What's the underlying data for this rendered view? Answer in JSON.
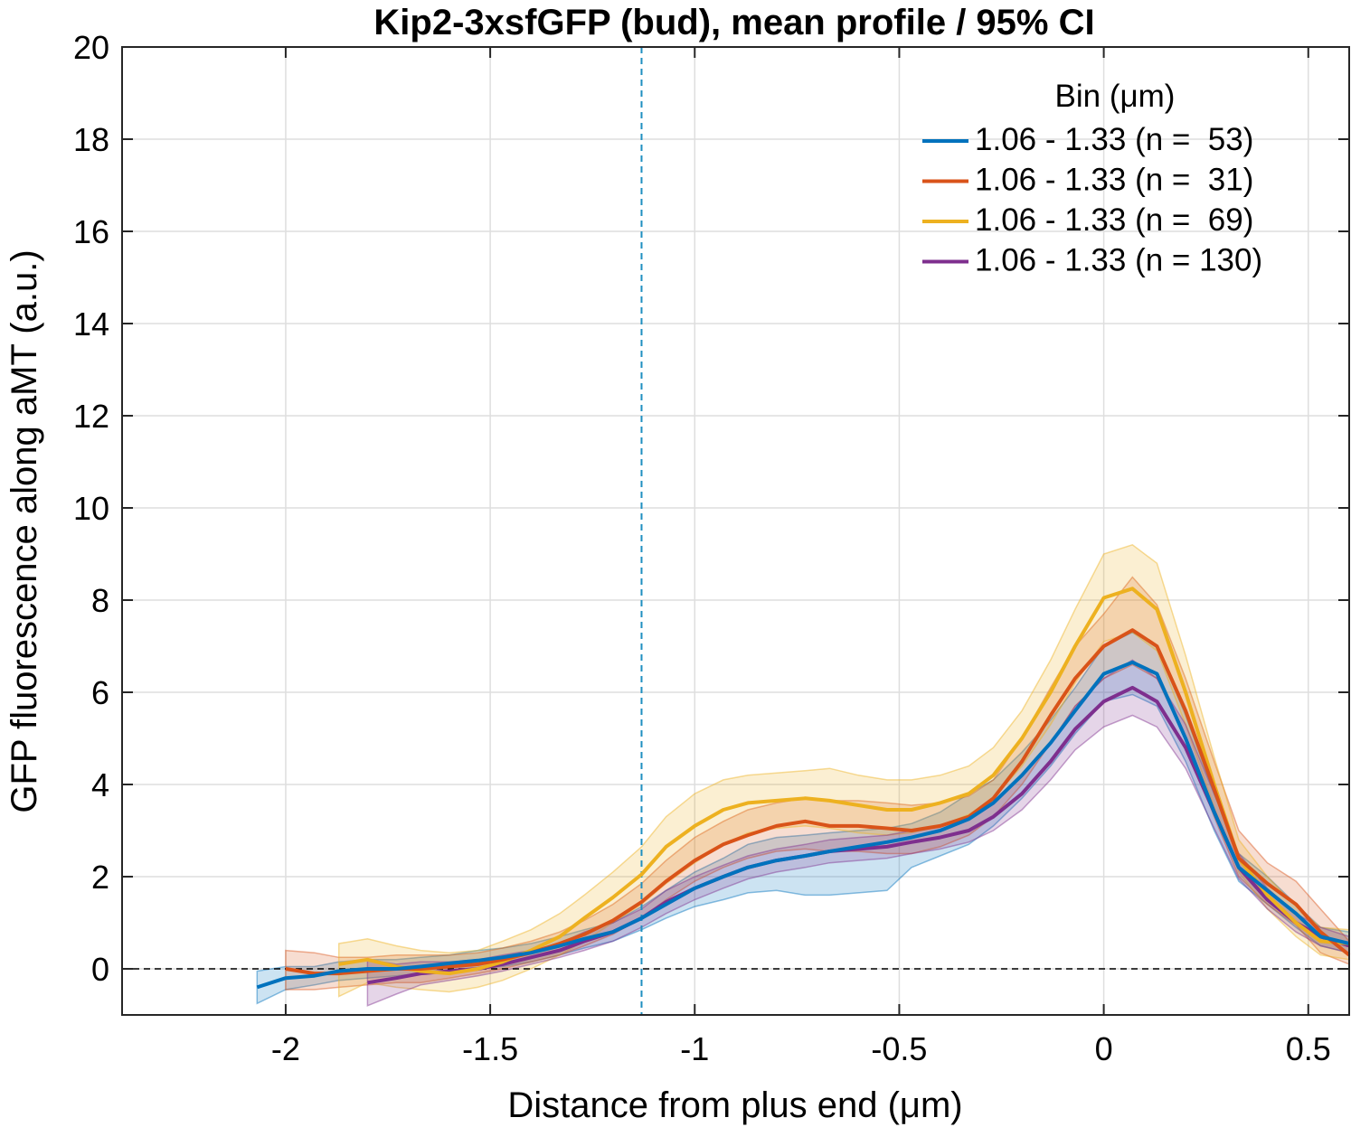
{
  "chart_data": {
    "type": "line",
    "title": "Kip2-3xsfGFP (bud), mean profile / 95% CI",
    "xlabel": "Distance from plus end (μm)",
    "ylabel": "GFP fluorescence along aMT (a.u.)",
    "xlim": [
      -2.4,
      0.6
    ],
    "ylim": [
      -1,
      20
    ],
    "xticks": [
      -2,
      -1.5,
      -1,
      -0.5,
      0,
      0.5
    ],
    "xtick_labels": [
      "-2",
      "-1.5",
      "-1",
      "-0.5",
      "0",
      "0.5"
    ],
    "yticks": [
      0,
      2,
      4,
      6,
      8,
      10,
      12,
      14,
      16,
      18,
      20
    ],
    "ytick_labels": [
      "0",
      "2",
      "4",
      "6",
      "8",
      "10",
      "12",
      "14",
      "16",
      "18",
      "20"
    ],
    "grid": true,
    "reference_lines": [
      {
        "orientation": "vertical",
        "x": -1.13,
        "style": "dashed",
        "color": "#1f8fc0"
      },
      {
        "orientation": "horizontal",
        "y": 0,
        "style": "dashed",
        "color": "#000000"
      }
    ],
    "legend": {
      "title": "Bin (μm)",
      "placement": "top-right"
    },
    "series": [
      {
        "name": "1.06 - 1.33 (n =  53)",
        "color": "#0072bd",
        "x": [
          -2.07,
          -2.0,
          -1.93,
          -1.87,
          -1.8,
          -1.73,
          -1.67,
          -1.6,
          -1.53,
          -1.47,
          -1.4,
          -1.33,
          -1.27,
          -1.2,
          -1.13,
          -1.07,
          -1.0,
          -0.93,
          -0.87,
          -0.8,
          -0.73,
          -0.67,
          -0.6,
          -0.53,
          -0.47,
          -0.4,
          -0.33,
          -0.27,
          -0.2,
          -0.13,
          -0.07,
          0.0,
          0.07,
          0.13,
          0.2,
          0.27,
          0.33,
          0.4,
          0.47,
          0.53,
          0.6
        ],
        "y": [
          -0.4,
          -0.2,
          -0.15,
          -0.05,
          0.0,
          0.0,
          0.05,
          0.12,
          0.18,
          0.25,
          0.35,
          0.5,
          0.65,
          0.8,
          1.1,
          1.4,
          1.75,
          2.0,
          2.2,
          2.35,
          2.45,
          2.55,
          2.65,
          2.75,
          2.85,
          3.0,
          3.25,
          3.6,
          4.2,
          4.9,
          5.6,
          6.4,
          6.65,
          6.4,
          5.0,
          3.4,
          2.2,
          1.7,
          1.2,
          0.7,
          0.55
        ],
        "ci_lower": [
          -0.75,
          -0.45,
          -0.35,
          -0.25,
          -0.2,
          -0.15,
          -0.1,
          -0.05,
          0.0,
          0.05,
          0.15,
          0.3,
          0.45,
          0.6,
          0.85,
          1.1,
          1.35,
          1.5,
          1.65,
          1.7,
          1.6,
          1.6,
          1.65,
          1.7,
          2.2,
          2.45,
          2.7,
          3.1,
          3.7,
          4.4,
          5.1,
          5.8,
          5.95,
          5.7,
          4.5,
          3.0,
          1.9,
          1.4,
          0.9,
          0.5,
          0.35
        ],
        "ci_upper": [
          -0.05,
          0.05,
          0.05,
          0.15,
          0.2,
          0.2,
          0.25,
          0.3,
          0.4,
          0.45,
          0.55,
          0.7,
          0.85,
          1.0,
          1.35,
          1.7,
          2.1,
          2.4,
          2.7,
          2.85,
          2.9,
          2.95,
          3.0,
          3.05,
          3.15,
          3.4,
          3.8,
          4.1,
          4.7,
          5.4,
          6.1,
          7.0,
          7.3,
          7.0,
          5.5,
          3.8,
          2.5,
          2.0,
          1.4,
          0.9,
          0.8
        ]
      },
      {
        "name": "1.06 - 1.33 (n =  31)",
        "color": "#d95319",
        "x": [
          -2.0,
          -1.93,
          -1.87,
          -1.8,
          -1.73,
          -1.67,
          -1.6,
          -1.53,
          -1.47,
          -1.4,
          -1.33,
          -1.27,
          -1.2,
          -1.13,
          -1.07,
          -1.0,
          -0.93,
          -0.87,
          -0.8,
          -0.73,
          -0.67,
          -0.6,
          -0.53,
          -0.47,
          -0.4,
          -0.33,
          -0.27,
          -0.2,
          -0.13,
          -0.07,
          0.0,
          0.07,
          0.13,
          0.2,
          0.27,
          0.33,
          0.4,
          0.47,
          0.53,
          0.6
        ],
        "y": [
          0.0,
          -0.1,
          -0.1,
          -0.05,
          0.0,
          0.0,
          0.05,
          0.1,
          0.2,
          0.35,
          0.55,
          0.75,
          1.05,
          1.45,
          1.9,
          2.35,
          2.7,
          2.9,
          3.1,
          3.2,
          3.1,
          3.1,
          3.05,
          3.0,
          3.1,
          3.3,
          3.7,
          4.5,
          5.5,
          6.3,
          7.0,
          7.35,
          7.0,
          5.6,
          3.9,
          2.4,
          1.85,
          1.4,
          0.8,
          0.3
        ],
        "ci_lower": [
          -0.45,
          -0.45,
          -0.4,
          -0.35,
          -0.3,
          -0.3,
          -0.2,
          -0.1,
          0.0,
          0.15,
          0.3,
          0.5,
          0.75,
          1.1,
          1.5,
          1.9,
          2.2,
          2.4,
          2.55,
          2.6,
          2.55,
          2.55,
          2.5,
          2.5,
          2.65,
          2.9,
          3.3,
          4.0,
          4.9,
          5.7,
          6.3,
          6.6,
          6.3,
          5.0,
          3.3,
          2.0,
          1.4,
          0.95,
          0.35,
          0.1
        ],
        "ci_upper": [
          0.4,
          0.35,
          0.25,
          0.25,
          0.3,
          0.3,
          0.3,
          0.35,
          0.45,
          0.6,
          0.8,
          1.05,
          1.4,
          1.85,
          2.35,
          2.85,
          3.2,
          3.45,
          3.6,
          3.7,
          3.65,
          3.65,
          3.6,
          3.55,
          3.6,
          3.75,
          4.1,
          5.0,
          6.1,
          7.0,
          7.7,
          8.5,
          7.9,
          6.3,
          4.5,
          3.0,
          2.3,
          1.9,
          1.3,
          0.6
        ]
      },
      {
        "name": "1.06 - 1.33 (n =  69)",
        "color": "#edb120",
        "x": [
          -1.87,
          -1.8,
          -1.73,
          -1.67,
          -1.6,
          -1.53,
          -1.47,
          -1.4,
          -1.33,
          -1.27,
          -1.2,
          -1.13,
          -1.07,
          -1.0,
          -0.93,
          -0.87,
          -0.8,
          -0.73,
          -0.67,
          -0.6,
          -0.53,
          -0.47,
          -0.4,
          -0.33,
          -0.27,
          -0.2,
          -0.13,
          -0.07,
          0.0,
          0.07,
          0.13,
          0.2,
          0.27,
          0.33,
          0.4,
          0.47,
          0.53,
          0.6
        ],
        "y": [
          0.1,
          0.2,
          0.05,
          -0.05,
          -0.1,
          0.0,
          0.15,
          0.4,
          0.7,
          1.1,
          1.55,
          2.05,
          2.65,
          3.1,
          3.45,
          3.6,
          3.65,
          3.7,
          3.65,
          3.55,
          3.45,
          3.45,
          3.6,
          3.8,
          4.2,
          5.0,
          6.0,
          7.0,
          8.05,
          8.25,
          7.8,
          6.0,
          4.0,
          2.4,
          1.6,
          1.0,
          0.6,
          0.55
        ],
        "ci_lower": [
          -0.6,
          -0.3,
          -0.4,
          -0.45,
          -0.5,
          -0.4,
          -0.25,
          0.0,
          0.3,
          0.6,
          1.0,
          1.4,
          1.85,
          2.3,
          2.7,
          2.95,
          3.05,
          3.1,
          3.05,
          2.95,
          2.9,
          2.95,
          3.1,
          3.35,
          3.7,
          4.4,
          5.3,
          6.2,
          7.1,
          7.3,
          6.9,
          5.3,
          3.5,
          2.1,
          1.3,
          0.7,
          0.3,
          0.2
        ],
        "ci_upper": [
          0.55,
          0.65,
          0.5,
          0.4,
          0.35,
          0.4,
          0.6,
          0.85,
          1.2,
          1.6,
          2.1,
          2.65,
          3.3,
          3.8,
          4.1,
          4.2,
          4.25,
          4.3,
          4.35,
          4.2,
          4.1,
          4.1,
          4.2,
          4.4,
          4.8,
          5.6,
          6.7,
          7.8,
          9.0,
          9.2,
          8.8,
          6.8,
          4.6,
          2.8,
          2.0,
          1.35,
          0.9,
          0.85
        ]
      },
      {
        "name": "1.06 - 1.33 (n = 130)",
        "color": "#7e2f8e",
        "x": [
          -1.8,
          -1.73,
          -1.67,
          -1.6,
          -1.53,
          -1.47,
          -1.4,
          -1.33,
          -1.27,
          -1.2,
          -1.13,
          -1.07,
          -1.0,
          -0.93,
          -0.87,
          -0.8,
          -0.73,
          -0.67,
          -0.6,
          -0.53,
          -0.47,
          -0.4,
          -0.33,
          -0.27,
          -0.2,
          -0.13,
          -0.07,
          0.0,
          0.07,
          0.13,
          0.2,
          0.27,
          0.33,
          0.4,
          0.47,
          0.53,
          0.6
        ],
        "y": [
          -0.3,
          -0.2,
          -0.1,
          -0.05,
          0.0,
          0.1,
          0.25,
          0.4,
          0.6,
          0.8,
          1.1,
          1.45,
          1.75,
          2.0,
          2.2,
          2.35,
          2.45,
          2.55,
          2.6,
          2.65,
          2.75,
          2.85,
          3.0,
          3.3,
          3.8,
          4.5,
          5.2,
          5.8,
          6.1,
          5.8,
          4.8,
          3.4,
          2.2,
          1.5,
          1.0,
          0.7,
          0.5
        ],
        "ci_lower": [
          -0.8,
          -0.55,
          -0.35,
          -0.25,
          -0.15,
          -0.05,
          0.1,
          0.25,
          0.4,
          0.6,
          0.9,
          1.2,
          1.5,
          1.75,
          1.95,
          2.1,
          2.2,
          2.3,
          2.35,
          2.4,
          2.5,
          2.6,
          2.75,
          3.0,
          3.45,
          4.1,
          4.75,
          5.25,
          5.5,
          5.25,
          4.35,
          3.05,
          1.95,
          1.3,
          0.8,
          0.5,
          0.35
        ],
        "ci_upper": [
          0.2,
          0.1,
          0.15,
          0.15,
          0.2,
          0.3,
          0.4,
          0.55,
          0.8,
          1.0,
          1.3,
          1.7,
          2.0,
          2.25,
          2.45,
          2.6,
          2.7,
          2.8,
          2.85,
          2.9,
          3.0,
          3.1,
          3.3,
          3.6,
          4.2,
          4.9,
          5.7,
          6.3,
          6.7,
          6.3,
          5.3,
          3.8,
          2.5,
          1.75,
          1.2,
          0.9,
          0.7
        ]
      }
    ]
  }
}
